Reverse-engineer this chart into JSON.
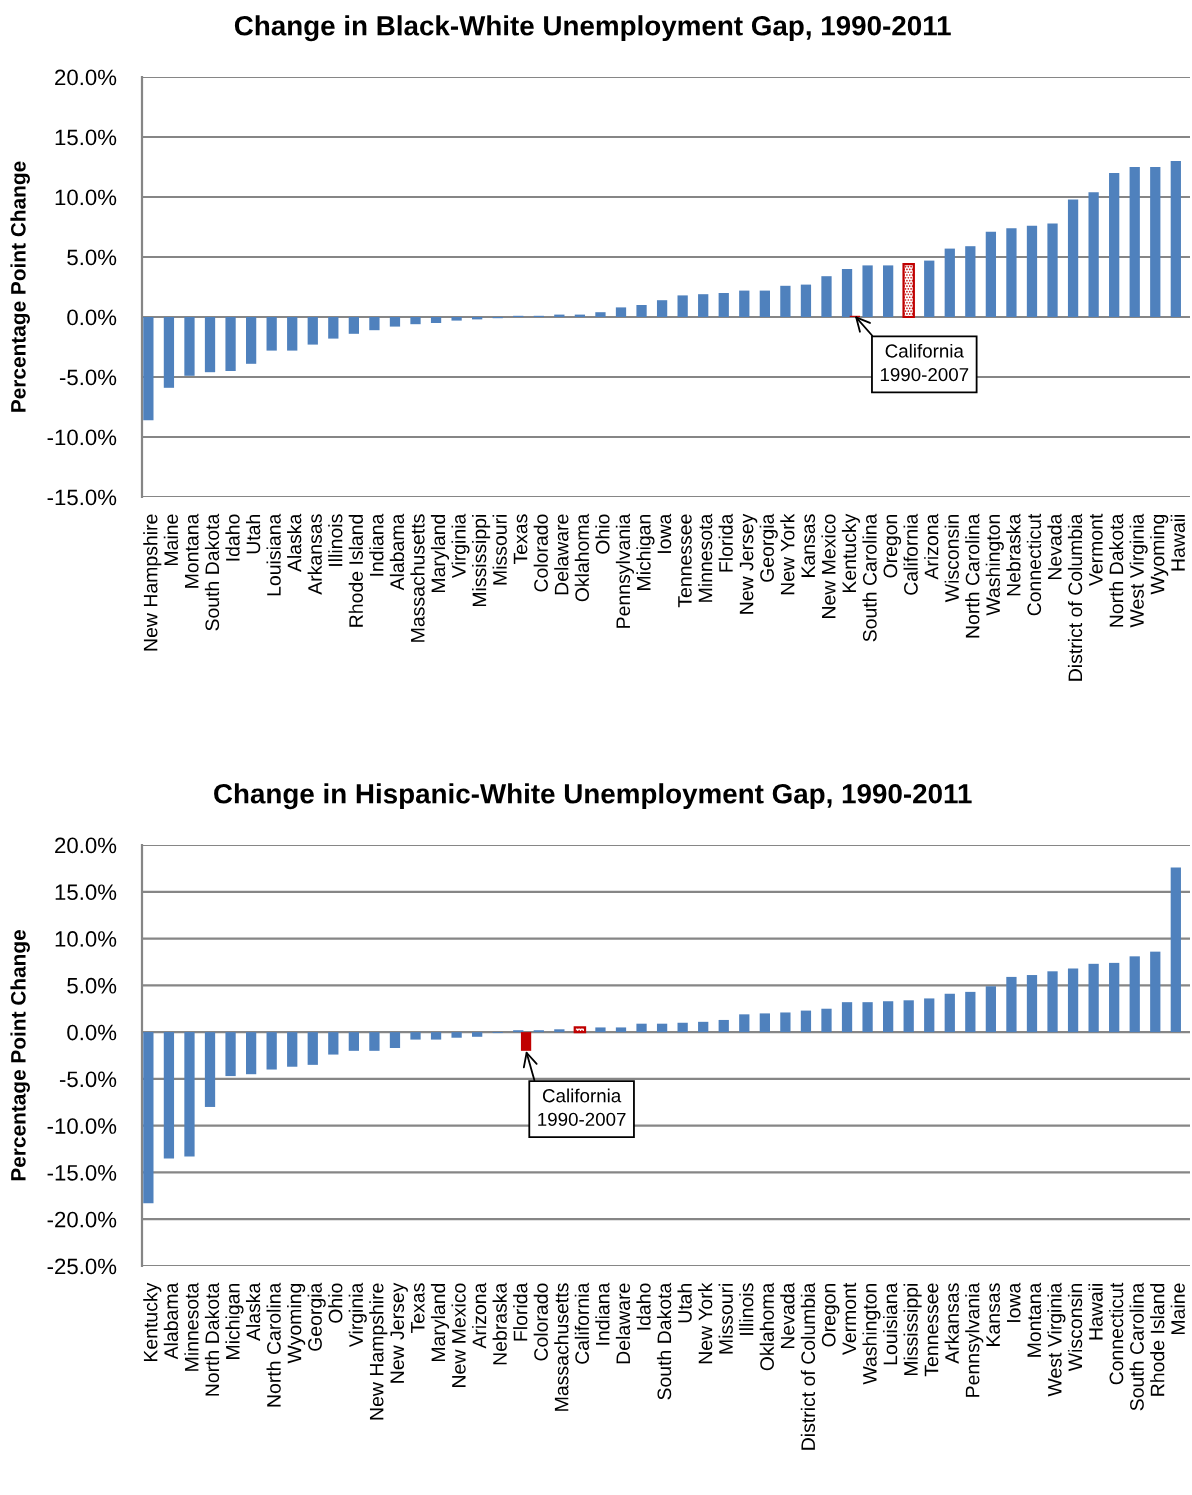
{
  "chart_data": [
    {
      "type": "bar",
      "title": "Change in Black-White Unemployment Gap, 1990-2011",
      "ylabel": "Percentage Point Change",
      "categories": [
        "New Hampshire",
        "Maine",
        "Montana",
        "South Dakota",
        "Idaho",
        "Utah",
        "Louisiana",
        "Alaska",
        "Arkansas",
        "Illinois",
        "Rhode Island",
        "Indiana",
        "Alabama",
        "Massachusetts",
        "Maryland",
        "Virginia",
        "Mississippi",
        "Missouri",
        "Texas",
        "Colorado",
        "Delaware",
        "Oklahoma",
        "Ohio",
        "Pennsylvania",
        "Michigan",
        "Iowa",
        "Tennessee",
        "Minnesota",
        "Florida",
        "New Jersey",
        "Georgia",
        "New York",
        "Kansas",
        "New Mexico",
        "Kentucky",
        "South Carolina",
        "Oregon",
        "California",
        "Arizona",
        "Wisconsin",
        "North Carolina",
        "Washington",
        "Nebraska",
        "Connecticut",
        "Nevada",
        "District of Columbia",
        "Vermont",
        "North Dakota",
        "West Virginia",
        "Wyoming",
        "Hawaii"
      ],
      "series": [
        {
          "color": "#4f81bd",
          "colors": [
            "#4f81bd",
            "#4f81bd",
            "#4f81bd",
            "#4f81bd",
            "#4f81bd",
            "#4f81bd",
            "#4f81bd",
            "#4f81bd",
            "#4f81bd",
            "#4f81bd",
            "#4f81bd",
            "#4f81bd",
            "#4f81bd",
            "#4f81bd",
            "#4f81bd",
            "#4f81bd",
            "#4f81bd",
            "#4f81bd",
            "#4f81bd",
            "#4f81bd",
            "#4f81bd",
            "#4f81bd",
            "#4f81bd",
            "#4f81bd",
            "#4f81bd",
            "#4f81bd",
            "#4f81bd",
            "#4f81bd",
            "#4f81bd",
            "#4f81bd",
            "#4f81bd",
            "#4f81bd",
            "#4f81bd",
            "#4f81bd",
            "#4f81bd",
            "#4f81bd",
            "#4f81bd",
            "#c00000",
            "#4f81bd",
            "#4f81bd",
            "#4f81bd",
            "#4f81bd",
            "#4f81bd",
            "#4f81bd",
            "#4f81bd",
            "#4f81bd",
            "#4f81bd",
            "#4f81bd",
            "#4f81bd",
            "#4f81bd",
            "#4f81bd"
          ],
          "values": [
            -8.6,
            -5.9,
            -4.9,
            -4.6,
            -4.5,
            -3.9,
            -2.8,
            -2.8,
            -2.3,
            -1.8,
            -1.4,
            -1.1,
            -0.8,
            -0.6,
            -0.5,
            -0.3,
            -0.2,
            -0.1,
            0.1,
            0.1,
            0.2,
            0.2,
            0.4,
            0.8,
            1.0,
            1.4,
            1.8,
            1.9,
            2.0,
            2.2,
            2.2,
            2.6,
            2.7,
            3.4,
            4.0,
            4.3,
            4.3,
            4.4,
            4.7,
            5.7,
            5.9,
            7.1,
            7.4,
            7.6,
            7.8,
            9.8,
            10.4,
            12.0,
            12.5,
            12.5,
            13.0
          ]
        },
        {
          "color": "#c00000",
          "values": [
            null,
            null,
            null,
            null,
            null,
            null,
            null,
            null,
            null,
            null,
            null,
            null,
            null,
            null,
            null,
            null,
            null,
            null,
            null,
            null,
            null,
            null,
            null,
            null,
            null,
            null,
            null,
            null,
            null,
            null,
            null,
            null,
            null,
            null,
            0.1,
            null,
            null,
            null,
            null,
            null,
            null,
            null,
            null,
            null,
            null,
            null,
            null,
            null,
            null,
            null,
            null
          ]
        }
      ],
      "ylim": [
        -15,
        20
      ],
      "yticks": [
        {
          "value": -15,
          "label": "-15.0%"
        },
        {
          "value": -10,
          "label": "-10.0%"
        },
        {
          "value": -5,
          "label": "-5.0%"
        },
        {
          "value": 0,
          "label": "0.0%"
        },
        {
          "value": 5,
          "label": "5.0%"
        },
        {
          "value": 10,
          "label": "10.0%"
        },
        {
          "value": 15,
          "label": "15.0%"
        },
        {
          "value": 20,
          "label": "20.0%"
        }
      ],
      "grid": "y",
      "annotations": [
        {
          "text": "California\n1990-2007",
          "x": "Kentucky",
          "y": 0.1
        }
      ]
    },
    {
      "type": "bar",
      "title": "Change in Hispanic-White Unemployment Gap, 1990-2011",
      "ylabel": "Percentage Point Change",
      "categories": [
        "Kentucky",
        "Alabama",
        "Minnesota",
        "North Dakota",
        "Michigan",
        "Alaska",
        "North Carolina",
        "Wyoming",
        "Georgia",
        "Ohio",
        "Virginia",
        "New Hampshire",
        "New Jersey",
        "Texas",
        "Maryland",
        "New Mexico",
        "Arizona",
        "Nebraska",
        "Florida",
        "Colorado",
        "Massachusetts",
        "California",
        "Indiana",
        "Delaware",
        "Idaho",
        "South Dakota",
        "Utah",
        "New York",
        "Missouri",
        "Illinois",
        "Oklahoma",
        "Nevada",
        "District of Columbia",
        "Oregon",
        "Vermont",
        "Washington",
        "Louisiana",
        "Mississippi",
        "Tennessee",
        "Arkansas",
        "Pennsylvania",
        "Kansas",
        "Iowa",
        "Montana",
        "West Virginia",
        "Wisconsin",
        "Hawaii",
        "Connecticut",
        "South Carolina",
        "Rhode Island",
        "Maine"
      ],
      "series": [
        {
          "color": "#4f81bd",
          "colors": [
            "#4f81bd",
            "#4f81bd",
            "#4f81bd",
            "#4f81bd",
            "#4f81bd",
            "#4f81bd",
            "#4f81bd",
            "#4f81bd",
            "#4f81bd",
            "#4f81bd",
            "#4f81bd",
            "#4f81bd",
            "#4f81bd",
            "#4f81bd",
            "#4f81bd",
            "#4f81bd",
            "#4f81bd",
            "#4f81bd",
            "#4f81bd",
            "#4f81bd",
            "#4f81bd",
            "#c00000",
            "#4f81bd",
            "#4f81bd",
            "#4f81bd",
            "#4f81bd",
            "#4f81bd",
            "#4f81bd",
            "#4f81bd",
            "#4f81bd",
            "#4f81bd",
            "#4f81bd",
            "#4f81bd",
            "#4f81bd",
            "#4f81bd",
            "#4f81bd",
            "#4f81bd",
            "#4f81bd",
            "#4f81bd",
            "#4f81bd",
            "#4f81bd",
            "#4f81bd",
            "#4f81bd",
            "#4f81bd",
            "#4f81bd",
            "#4f81bd",
            "#4f81bd",
            "#4f81bd",
            "#4f81bd",
            "#4f81bd",
            "#4f81bd"
          ],
          "values": [
            -18.3,
            -13.5,
            -13.3,
            -8.0,
            -4.7,
            -4.5,
            -4.0,
            -3.7,
            -3.5,
            -2.4,
            -2.0,
            -2.0,
            -1.7,
            -0.8,
            -0.8,
            -0.6,
            -0.5,
            -0.1,
            0.2,
            0.2,
            0.3,
            0.5,
            0.5,
            0.5,
            0.9,
            0.9,
            1.0,
            1.1,
            1.3,
            1.9,
            2.0,
            2.1,
            2.3,
            2.5,
            3.2,
            3.2,
            3.3,
            3.4,
            3.6,
            4.1,
            4.3,
            4.9,
            5.9,
            6.1,
            6.5,
            6.8,
            7.3,
            7.4,
            8.1,
            8.6,
            17.6
          ]
        },
        {
          "color": "#c00000",
          "values": [
            null,
            null,
            null,
            null,
            null,
            null,
            null,
            null,
            null,
            null,
            null,
            null,
            null,
            null,
            null,
            null,
            null,
            null,
            -2.0,
            null,
            null,
            null,
            null,
            null,
            null,
            null,
            null,
            null,
            null,
            null,
            null,
            null,
            null,
            null,
            null,
            null,
            null,
            null,
            null,
            null,
            null,
            null,
            null,
            null,
            null,
            null,
            null,
            null,
            null,
            null,
            null
          ]
        }
      ],
      "ylim": [
        -25,
        20
      ],
      "yticks": [
        {
          "value": -25,
          "label": "-25.0%"
        },
        {
          "value": -20,
          "label": "-20.0%"
        },
        {
          "value": -15,
          "label": "-15.0%"
        },
        {
          "value": -10,
          "label": "-10.0%"
        },
        {
          "value": -5,
          "label": "-5.0%"
        },
        {
          "value": 0,
          "label": "0.0%"
        },
        {
          "value": 5,
          "label": "5.0%"
        },
        {
          "value": 10,
          "label": "10.0%"
        },
        {
          "value": 15,
          "label": "15.0%"
        },
        {
          "value": 20,
          "label": "20.0%"
        }
      ],
      "grid": "y",
      "annotations": [
        {
          "text": "California\n1990-2007",
          "x": "Florida",
          "y": -2.0
        }
      ]
    }
  ]
}
